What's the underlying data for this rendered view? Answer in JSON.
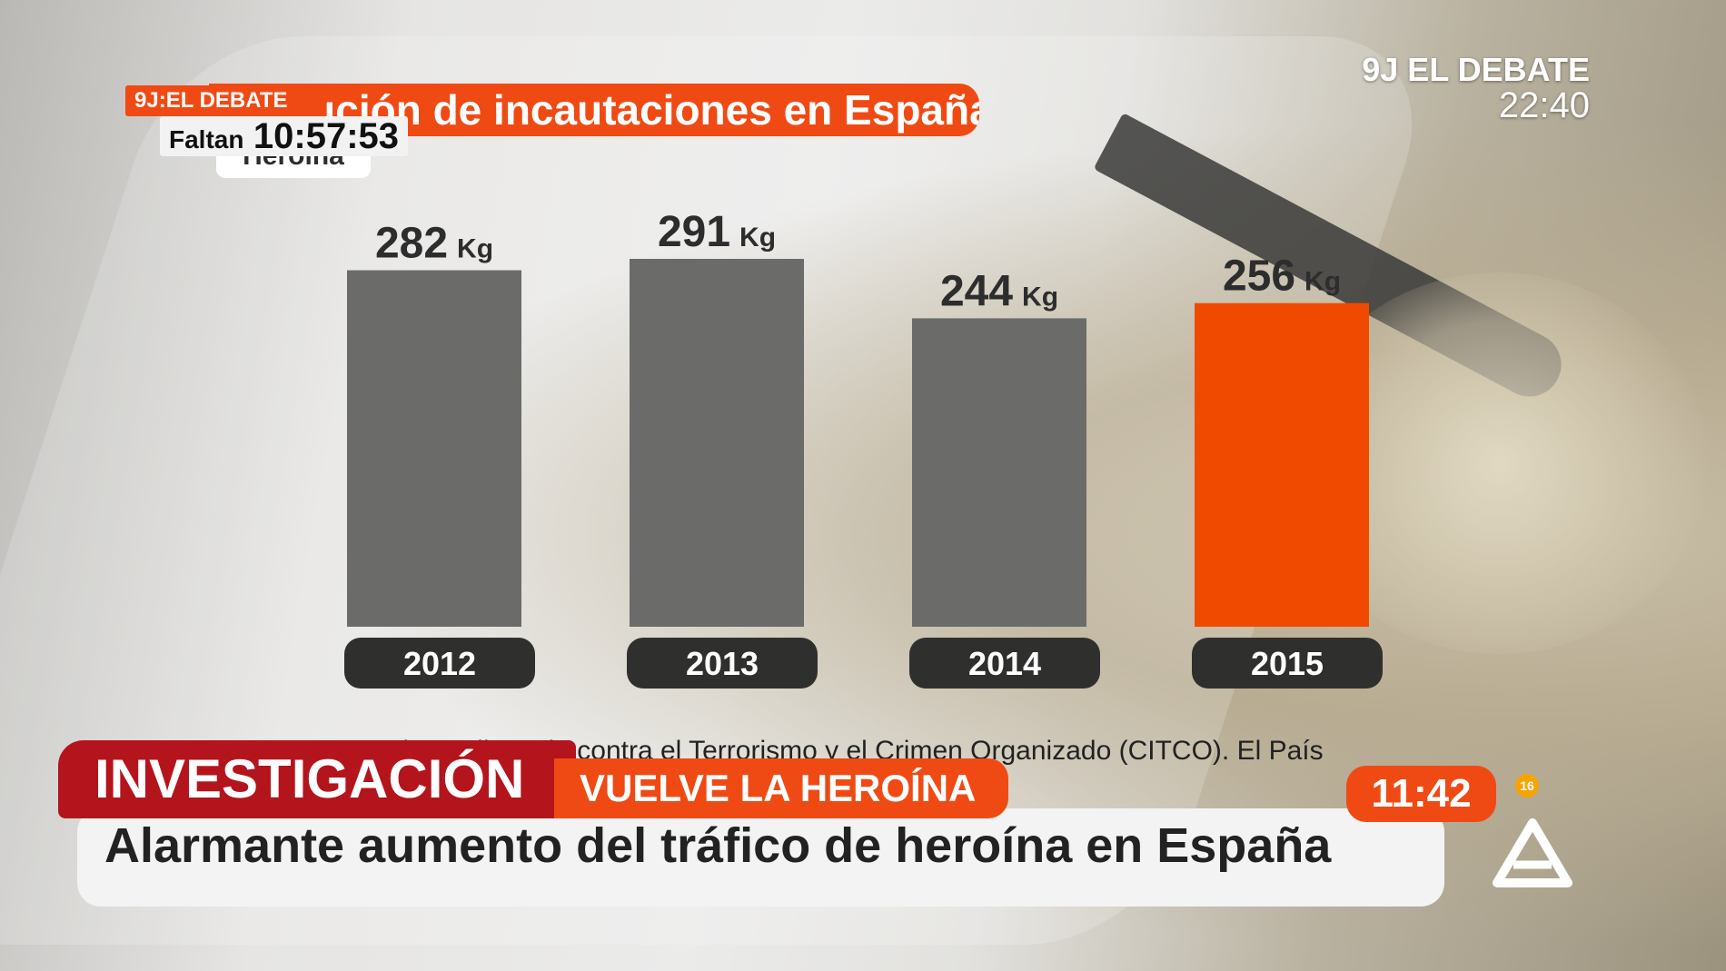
{
  "overlay": {
    "tag_top": "9J:EL DEBATE",
    "countdown_label": "Faltan",
    "countdown_time": "10:57:53",
    "program_logo_line1": "9J EL DEBATE",
    "program_logo_line2": "22:40"
  },
  "chart_data": {
    "type": "bar",
    "title": "Evolución de incautaciones en España",
    "subtitle": "Heroína",
    "categories": [
      "2012",
      "2013",
      "2014",
      "2015"
    ],
    "values": [
      282,
      291,
      244,
      256
    ],
    "value_labels": [
      "282",
      "291",
      "244",
      "256"
    ],
    "unit": "Kg",
    "colors": [
      "#6b6c6a",
      "#6b6c6a",
      "#6b6c6a",
      "#f04a00"
    ],
    "highlight_color": "#f04a00",
    "base_color": "#6b6c6a",
    "ylim": [
      0,
      291
    ],
    "source": "Fuente: Centro de Inteligencia contra el Terrorismo y el Crimen Organizado (CITCO). El País"
  },
  "lower_third": {
    "section": "INVESTIGACIÓN",
    "kicker": "VUELVE LA HEROÍNA",
    "headline": "Alarmante aumento del tráfico de heroína en España",
    "clock": "11:42",
    "rating": "16"
  },
  "colors": {
    "accent_orange": "#f04a14",
    "section_red": "#b4141c",
    "year_pill": "#2f302e"
  },
  "icons": {
    "channel_logo": "antena3-logo-icon"
  }
}
